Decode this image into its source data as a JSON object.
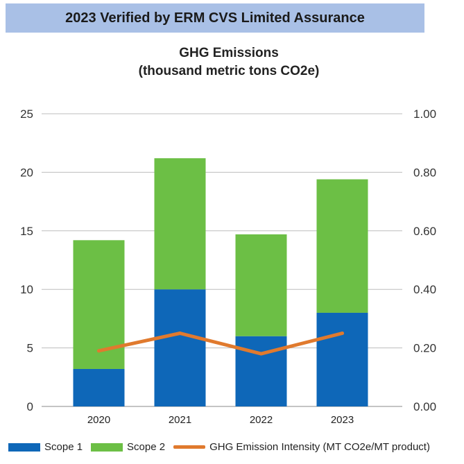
{
  "banner": {
    "text": "2023 Verified by ERM CVS Limited Assurance"
  },
  "chart_data": {
    "type": "bar",
    "title_line1": "GHG Emissions",
    "title_line2": "(thousand metric tons CO2e)",
    "categories": [
      "2020",
      "2021",
      "2022",
      "2023"
    ],
    "series": [
      {
        "name": "Scope 1",
        "values": [
          3.2,
          10.0,
          6.0,
          8.0
        ],
        "color": "#0e67b8",
        "axis": "left",
        "stacked": true
      },
      {
        "name": "Scope 2",
        "values": [
          11.0,
          11.2,
          8.7,
          11.4
        ],
        "color": "#6cbf45",
        "axis": "left",
        "stacked": true
      },
      {
        "name": "GHG Emission Intensity (MT CO2e/MT product)",
        "values": [
          0.19,
          0.25,
          0.18,
          0.25
        ],
        "color": "#e07a2e",
        "axis": "right",
        "kind": "line"
      }
    ],
    "ylim_left": [
      0,
      25
    ],
    "yticks_left": [
      "0",
      "5",
      "10",
      "15",
      "20",
      "25"
    ],
    "ylim_right": [
      0,
      1.0
    ],
    "yticks_right": [
      "0.00",
      "0.20",
      "0.40",
      "0.60",
      "0.80",
      "1.00"
    ],
    "grid": true,
    "legend_position": "bottom"
  }
}
